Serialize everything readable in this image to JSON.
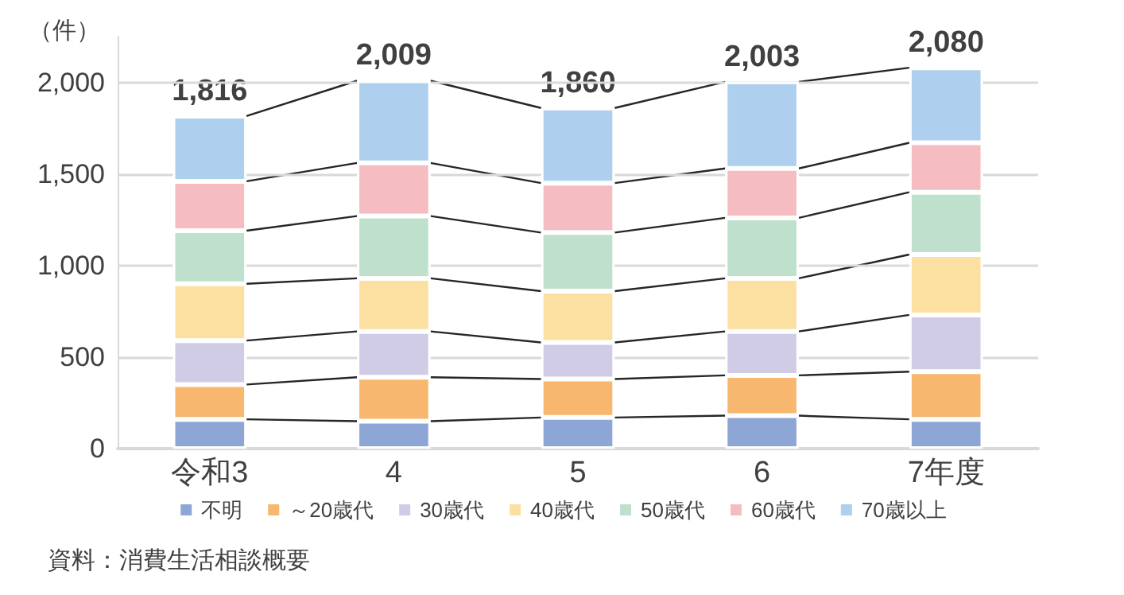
{
  "chart_data": {
    "type": "bar",
    "stacked": true,
    "ylabel": "（件）",
    "categories": [
      "令和3",
      "4",
      "5",
      "6",
      "7年度"
    ],
    "series": [
      {
        "name": "不明",
        "color": "#8ea6d5",
        "values": [
          160,
          150,
          170,
          180,
          160
        ]
      },
      {
        "name": "～20歳代",
        "color": "#f7b76f",
        "values": [
          190,
          240,
          210,
          220,
          260
        ]
      },
      {
        "name": "30歳代",
        "color": "#d1cce6",
        "values": [
          240,
          250,
          200,
          240,
          310
        ]
      },
      {
        "name": "40歳代",
        "color": "#fce0a2",
        "values": [
          310,
          290,
          280,
          290,
          330
        ]
      },
      {
        "name": "50歳代",
        "color": "#bfe0cc",
        "values": [
          290,
          340,
          320,
          330,
          340
        ]
      },
      {
        "name": "60歳代",
        "color": "#f5bcc1",
        "values": [
          270,
          290,
          270,
          270,
          270
        ]
      },
      {
        "name": "70歳以上",
        "color": "#aecfee",
        "values": [
          356,
          449,
          410,
          473,
          410
        ]
      }
    ],
    "totals": [
      "1,816",
      "2,009",
      "1,860",
      "2,003",
      "2,080"
    ],
    "ylim": [
      0,
      2250
    ],
    "yticks": [
      {
        "value": 0,
        "label": "0"
      },
      {
        "value": 500,
        "label": "500"
      },
      {
        "value": 1000,
        "label": "1,000"
      },
      {
        "value": 1500,
        "label": "1,500"
      },
      {
        "value": 2000,
        "label": "2,000"
      }
    ],
    "grid": "y",
    "legend": "bottom",
    "annotations": [
      "資料：消費生活相談概要"
    ]
  }
}
